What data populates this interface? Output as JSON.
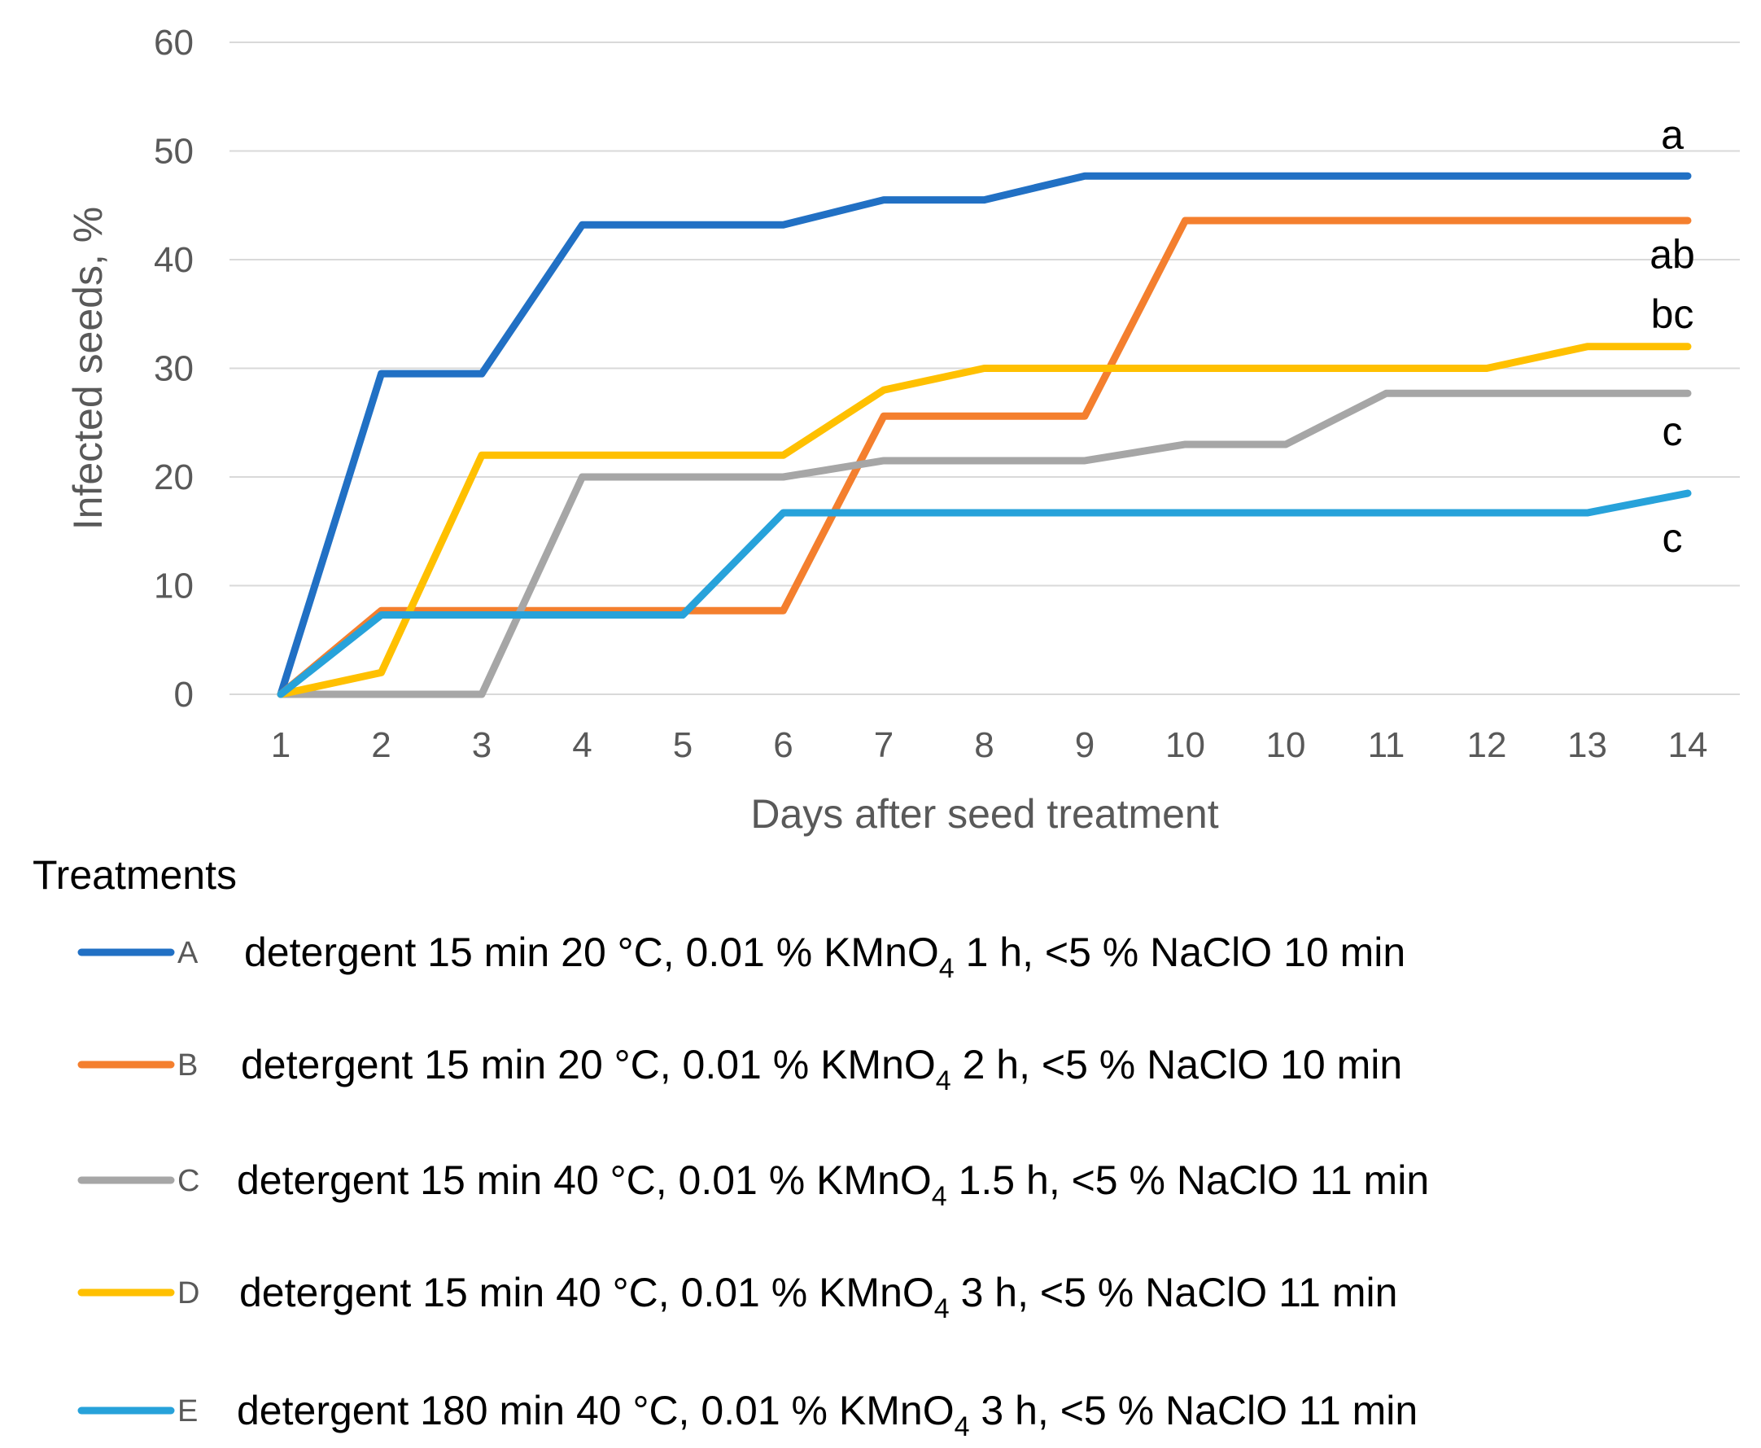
{
  "chart_data": {
    "type": "line",
    "title": "",
    "xlabel": "Days after seed treatment",
    "ylabel": "Infected seeds, %",
    "categories": [
      "1",
      "2",
      "3",
      "4",
      "5",
      "6",
      "7",
      "8",
      "9",
      "10",
      "10",
      "11",
      "12",
      "13",
      "14"
    ],
    "ylim": [
      0,
      60
    ],
    "yticks": [
      0,
      10,
      20,
      30,
      40,
      50,
      60
    ],
    "grid": true,
    "series": [
      {
        "key": "A",
        "color": "#2170C4",
        "label_parts": [
          "detergent 15 min 20 °C, 0.01 % KMnO",
          "4",
          " 1 h, <5 % NaClO 10 min"
        ],
        "values": [
          0,
          29.5,
          29.5,
          43.2,
          43.2,
          43.2,
          45.5,
          45.5,
          47.7,
          47.7,
          47.7,
          47.7,
          47.7,
          47.7,
          47.7
        ]
      },
      {
        "key": "B",
        "color": "#F47F2E",
        "label_parts": [
          "detergent 15 min 20 °C, 0.01 % KMnO",
          "4",
          " 2 h, <5 % NaClO 10 min"
        ],
        "values": [
          0,
          7.7,
          7.7,
          7.7,
          7.7,
          7.7,
          25.6,
          25.6,
          25.6,
          43.6,
          43.6,
          43.6,
          43.6,
          43.6,
          43.6
        ]
      },
      {
        "key": "C",
        "color": "#A6A6A6",
        "label_parts": [
          "detergent 15 min 40 °C, 0.01 % KMnO",
          "4",
          " 1.5 h, <5 % NaClO 11 min"
        ],
        "values": [
          0,
          0,
          0,
          20,
          20,
          20,
          21.5,
          21.5,
          21.5,
          23,
          23,
          27.7,
          27.7,
          27.7,
          27.7
        ]
      },
      {
        "key": "D",
        "color": "#FFC000",
        "label_parts": [
          "detergent 15 min 40 °C, 0.01 % KMnO",
          "4",
          " 3 h, <5 % NaClO 11 min"
        ],
        "values": [
          0,
          2,
          22,
          22,
          22,
          22,
          28,
          30,
          30,
          30,
          30,
          30,
          30,
          32,
          32
        ]
      },
      {
        "key": "E",
        "color": "#27A2DA",
        "label_parts": [
          "detergent 180 min 40 °C, 0.01 % KMnO",
          "4",
          " 3 h, <5 % NaClO 11 min"
        ],
        "values": [
          0,
          7.3,
          7.3,
          7.3,
          7.3,
          16.7,
          16.7,
          16.7,
          16.7,
          16.7,
          16.7,
          16.7,
          16.7,
          16.7,
          18.5
        ]
      }
    ],
    "significance_labels": [
      {
        "text": "a",
        "value": 51.5
      },
      {
        "text": "ab",
        "value": 40.5
      },
      {
        "text": "bc",
        "value": 35
      },
      {
        "text": "c",
        "value": 24.2
      },
      {
        "text": "c",
        "value": 14.4
      }
    ],
    "legend_title": "Treatments",
    "legend_position": "bottom"
  }
}
